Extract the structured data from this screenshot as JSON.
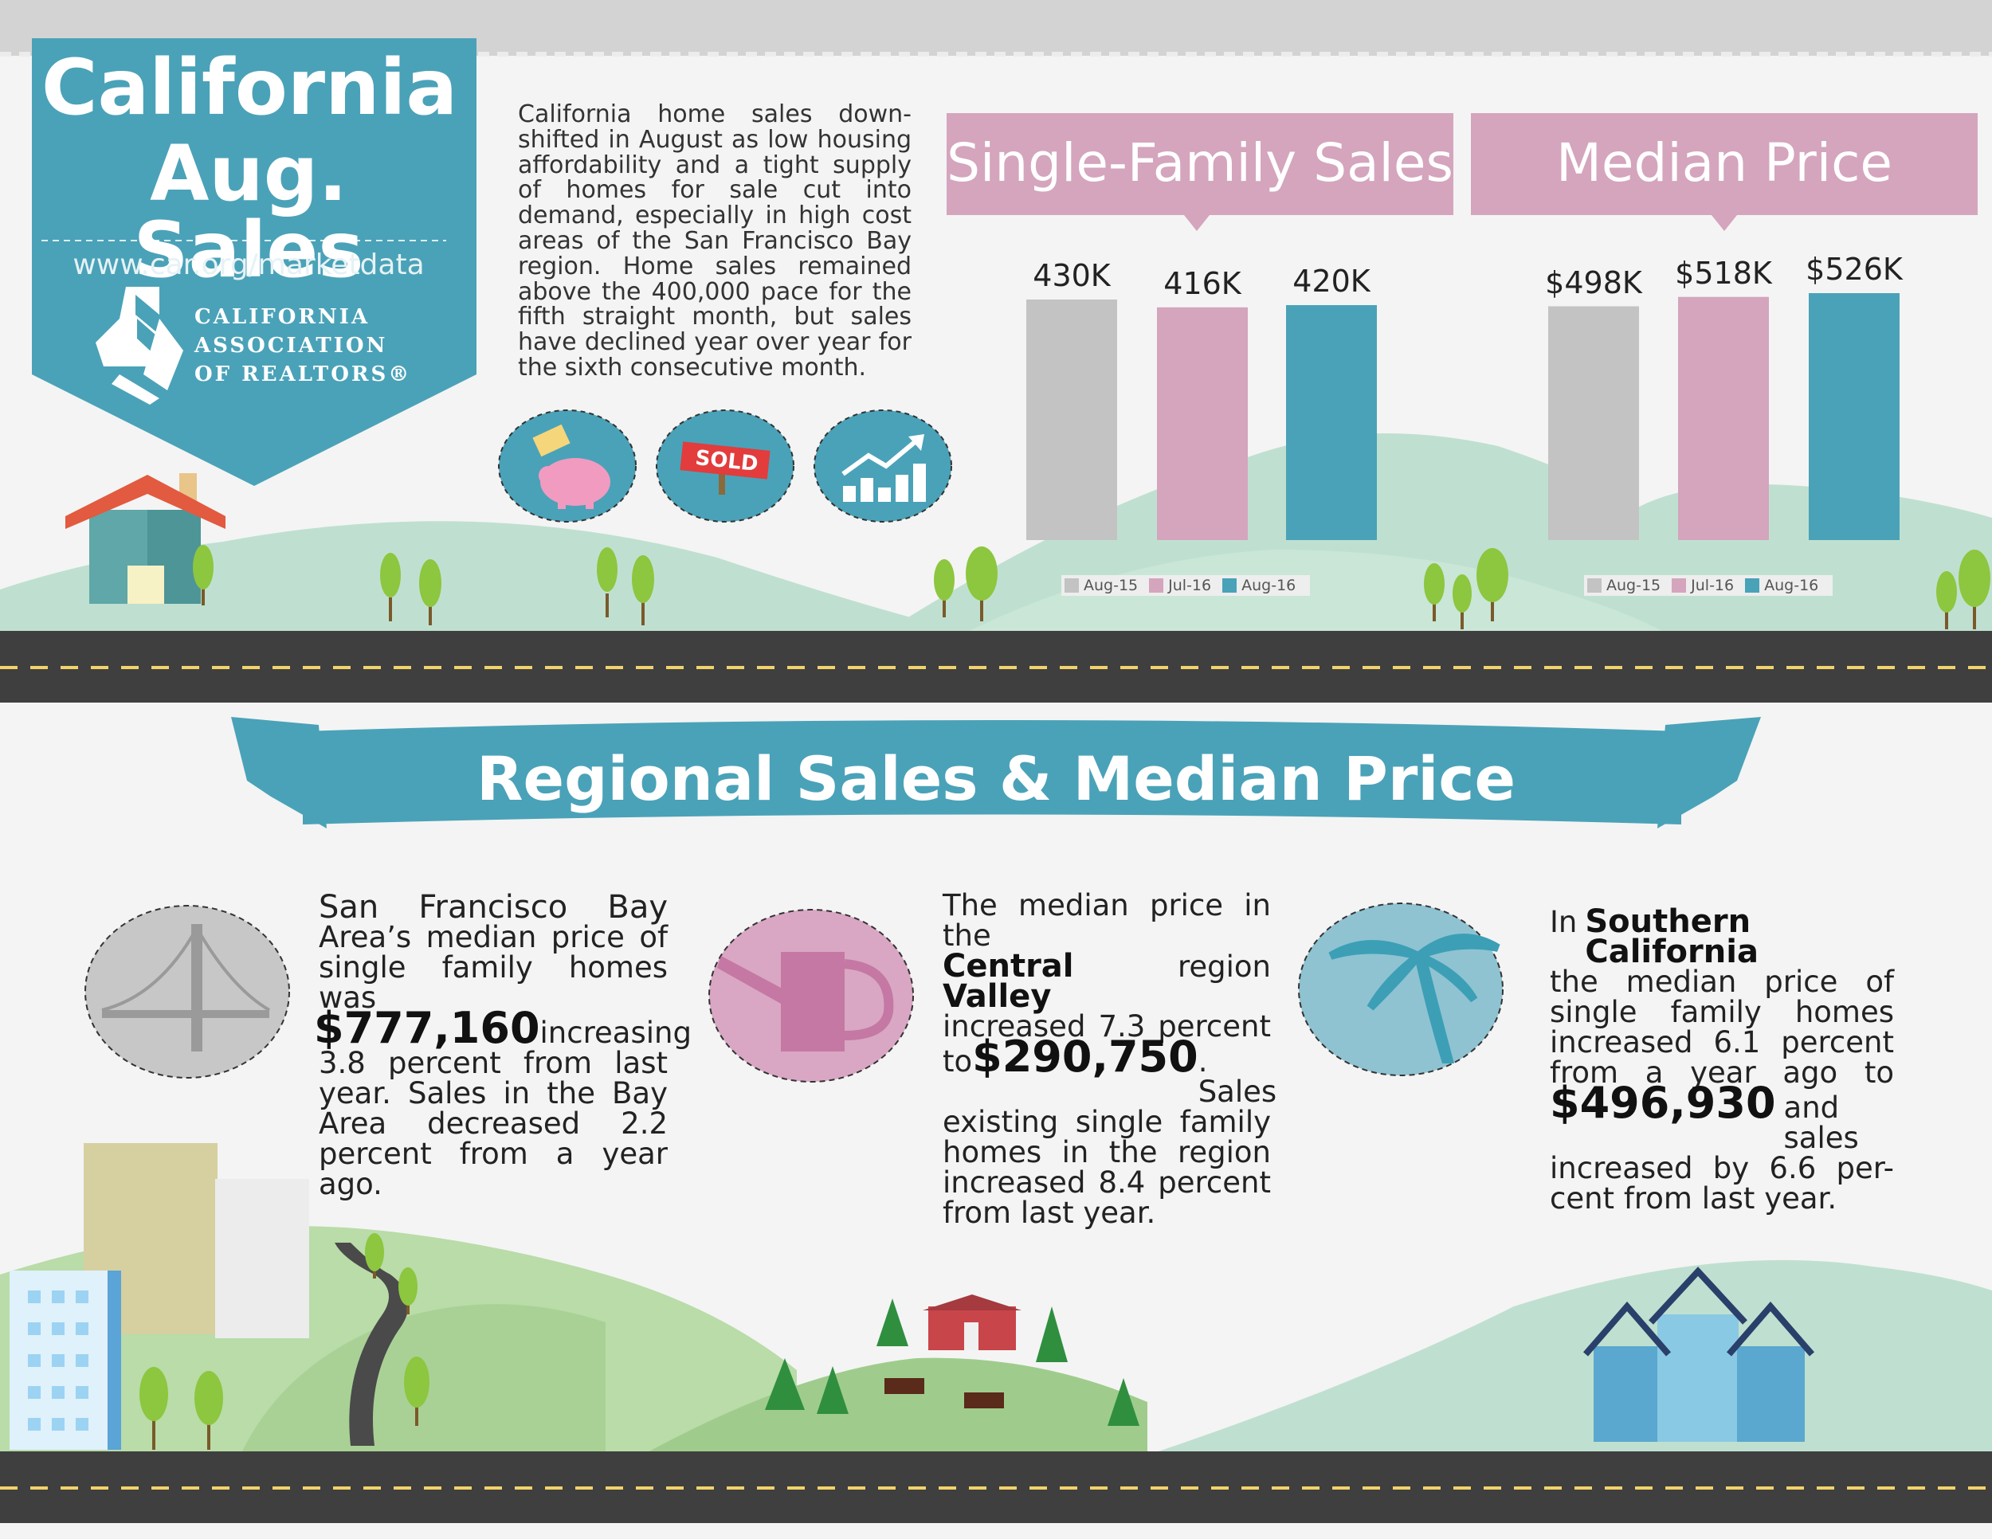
{
  "header": {
    "title_line1": "California",
    "title_line2": "Aug. Sales",
    "website": "www.car.org/marketdata",
    "org_name": [
      "CALIFORNIA",
      "ASSOCIATION",
      "OF REALTORS®"
    ]
  },
  "intro_text": "California home sales down-shifted in August as low housing affordability and a tight supply of homes for sale cut into demand, especially in high cost areas of the San Francisco Bay region. Home sales remained above the 400,000 pace for the fifth straight month, but sales have declined year over year for the sixth consecutive month.",
  "icons": [
    "piggy-bank-icon",
    "sold-sign-icon",
    "growth-chart-icon"
  ],
  "sold_label": "SOLD",
  "colors": {
    "teal": "#4aa2b8",
    "pink": "#d4a5bd",
    "gray": "#c3c3c3",
    "hill": "#bfe0d0",
    "road": "#3f3f3f"
  },
  "chart_data": [
    {
      "type": "bar",
      "title": "Single-Family Sales",
      "categories": [
        "Aug-15",
        "Jul-16",
        "Aug-16"
      ],
      "values": [
        430000,
        416000,
        420000
      ],
      "data_labels": [
        "430K",
        "416K",
        "420K"
      ],
      "legend": "bottom",
      "colors": [
        "#c3c3c3",
        "#d4a5bd",
        "#4aa2b8"
      ]
    },
    {
      "type": "bar",
      "title": "Median Price",
      "categories": [
        "Aug-15",
        "Jul-16",
        "Aug-16"
      ],
      "values": [
        498000,
        518000,
        526000
      ],
      "data_labels": [
        "$498K",
        "$518K",
        "$526K"
      ],
      "legend": "bottom",
      "colors": [
        "#c3c3c3",
        "#d4a5bd",
        "#4aa2b8"
      ]
    }
  ],
  "regional": {
    "banner": "Regional Sales & Median Price",
    "sf": {
      "heading": "San Francisco Bay",
      "line2": "Area’s median price of",
      "line3": "single family homes was",
      "price": "$777,160",
      "after_price": "increasing",
      "rest": [
        "3.8 percent from last",
        "year. Sales in the Bay",
        "Area decreased 2.2",
        "percent from a year"
      ],
      "last": "ago."
    },
    "cv": {
      "line1": "The median price in the",
      "region": "Central Valley",
      "region_after": "region",
      "line3": "increased 7.3 percent",
      "to": "to",
      "price": "$290,750",
      "after_price": ". Sales",
      "rest": [
        "existing single family",
        "homes in the region",
        "increased 8.4 percent"
      ],
      "last": "from last year."
    },
    "sc": {
      "in": "In",
      "region": "Southern California",
      "rest": [
        "the median price of",
        "single family homes",
        "increased 6.1 percent",
        "from a year ago to"
      ],
      "price": "$496,930",
      "after_price": "and sales",
      "rest2": [
        "increased by 6.6 per-"
      ],
      "last": "cent from last year."
    }
  }
}
